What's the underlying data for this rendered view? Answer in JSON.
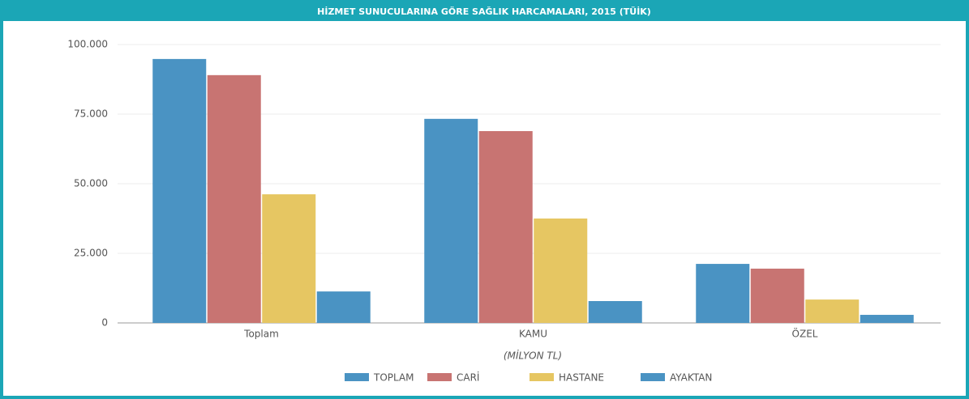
{
  "chart_data": {
    "type": "bar",
    "title": "HİZMET SUNUCULARINA GÖRE SAĞLIK HARCAMALARI, 2015 (TÜİK)",
    "x_label": "(MİLYON TL)",
    "categories": [
      "Toplam",
      "KAMU",
      "ÖZEL"
    ],
    "series": [
      {
        "name": "TOPLAM",
        "color": "#4a93c3",
        "values": [
          94800,
          73300,
          21200
        ]
      },
      {
        "name": "CARİ",
        "color": "#c87472",
        "values": [
          89000,
          68900,
          19500
        ]
      },
      {
        "name": "HASTANE",
        "color": "#e6c662",
        "values": [
          46200,
          37500,
          8400
        ]
      },
      {
        "name": "AYAKTAN",
        "color": "#4a93c3",
        "values": [
          11300,
          7850,
          2900
        ]
      }
    ],
    "ylim": [
      0,
      100000
    ],
    "yticks": [
      0,
      {
        "value": 25000,
        "label": "25.000"
      },
      {
        "value": 50000,
        "label": "50.000"
      },
      {
        "value": 75000,
        "label": "75.000"
      },
      {
        "value": 100000,
        "label": "100.000"
      }
    ],
    "grid": true,
    "legend": "bottom"
  }
}
